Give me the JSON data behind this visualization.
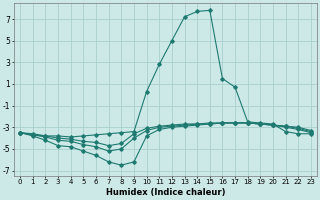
{
  "xlabel": "Humidex (Indice chaleur)",
  "xlim": [
    -0.5,
    23.5
  ],
  "ylim": [
    -7.5,
    8.5
  ],
  "yticks": [
    -7,
    -5,
    -3,
    -1,
    1,
    3,
    5,
    7
  ],
  "xticks": [
    0,
    1,
    2,
    3,
    4,
    5,
    6,
    7,
    8,
    9,
    10,
    11,
    12,
    13,
    14,
    15,
    16,
    17,
    18,
    19,
    20,
    21,
    22,
    23
  ],
  "background_color": "#cce9e7",
  "grid_color": "#aacfcd",
  "line_color": "#1e7a70",
  "lines": [
    {
      "x": [
        0,
        1,
        2,
        3,
        4,
        5,
        6,
        7,
        8,
        9,
        10,
        11,
        12,
        13,
        14,
        15,
        16,
        17,
        18,
        19,
        20,
        21,
        22,
        23
      ],
      "y": [
        -3.5,
        -3.7,
        -3.8,
        -3.8,
        -3.9,
        -3.8,
        -3.7,
        -3.6,
        -3.5,
        -3.4,
        0.3,
        2.8,
        5.0,
        7.2,
        7.7,
        7.8,
        1.5,
        0.7,
        -2.5,
        -2.6,
        -2.7,
        -3.4,
        -3.6,
        -3.6
      ]
    },
    {
      "x": [
        0,
        1,
        2,
        3,
        4,
        5,
        6,
        7,
        8,
        9,
        10,
        11,
        12,
        13,
        14,
        15,
        16,
        17,
        18,
        19,
        20,
        21,
        22,
        23
      ],
      "y": [
        -3.5,
        -3.8,
        -4.2,
        -4.7,
        -4.8,
        -5.2,
        -5.6,
        -6.2,
        -6.5,
        -6.2,
        -3.8,
        -3.2,
        -3.0,
        -2.9,
        -2.8,
        -2.7,
        -2.6,
        -2.6,
        -2.6,
        -2.7,
        -2.8,
        -3.0,
        -3.2,
        -3.5
      ]
    },
    {
      "x": [
        0,
        1,
        2,
        3,
        4,
        5,
        6,
        7,
        8,
        9,
        10,
        11,
        12,
        13,
        14,
        15,
        16,
        17,
        18,
        19,
        20,
        21,
        22,
        23
      ],
      "y": [
        -3.5,
        -3.7,
        -3.9,
        -4.2,
        -4.3,
        -4.6,
        -4.8,
        -5.2,
        -5.0,
        -4.0,
        -3.3,
        -3.0,
        -2.9,
        -2.8,
        -2.7,
        -2.7,
        -2.6,
        -2.6,
        -2.6,
        -2.7,
        -2.8,
        -2.9,
        -3.1,
        -3.4
      ]
    },
    {
      "x": [
        0,
        1,
        2,
        3,
        4,
        5,
        6,
        7,
        8,
        9,
        10,
        11,
        12,
        13,
        14,
        15,
        16,
        17,
        18,
        19,
        20,
        21,
        22,
        23
      ],
      "y": [
        -3.5,
        -3.6,
        -3.8,
        -4.0,
        -4.1,
        -4.3,
        -4.4,
        -4.7,
        -4.5,
        -3.6,
        -3.1,
        -2.9,
        -2.8,
        -2.7,
        -2.7,
        -2.6,
        -2.6,
        -2.6,
        -2.6,
        -2.7,
        -2.8,
        -2.9,
        -3.0,
        -3.3
      ]
    }
  ]
}
